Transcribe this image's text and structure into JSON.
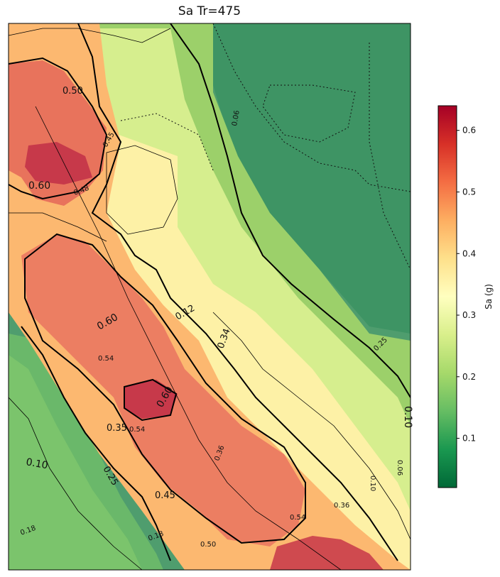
{
  "chart_data": {
    "type": "heatmap",
    "title": "Sa Tr=475",
    "colorbar": {
      "label": "Sa (g)",
      "colormap": "RdYlGn_r",
      "range": [
        0.02,
        0.64
      ],
      "ticks": [
        "0.1",
        "0.2",
        "0.3",
        "0.4",
        "0.5",
        "0.6"
      ],
      "tick_values": [
        0.1,
        0.2,
        0.3,
        0.4,
        0.5,
        0.6
      ],
      "stops": [
        "#006837",
        "#1a9850",
        "#66bd63",
        "#a6d96a",
        "#d9ef8b",
        "#ffffbf",
        "#fee08b",
        "#fdae61",
        "#f46d43",
        "#d73027",
        "#a50026"
      ]
    },
    "contour_labels": [
      "0.60",
      "0.50",
      "0.48",
      "0.45",
      "0.36",
      "0.10",
      "0.06",
      "0.06",
      "0.60",
      "0.54",
      "0.60",
      "0.54",
      "0.35",
      "0.25",
      "0.10",
      "0.45",
      "0.54",
      "0.36",
      "0.18",
      "0.50",
      "0.10",
      "0.12",
      "0.18",
      "0.25",
      "0.34"
    ],
    "grid": false,
    "legend": "colorbar-right"
  }
}
